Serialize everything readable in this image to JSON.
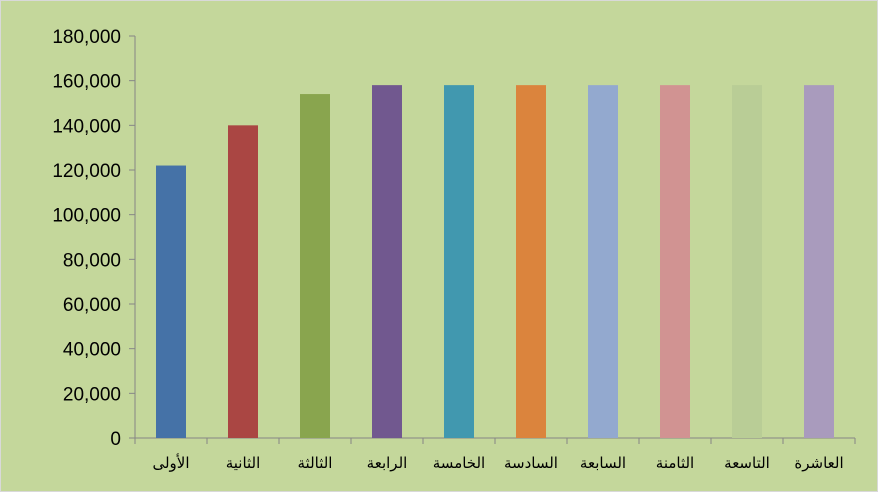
{
  "chart_data": {
    "type": "bar",
    "categories": [
      "الأولى",
      "الثانية",
      "الثالثة",
      "الرابعة",
      "الخامسة",
      "السادسة",
      "السابعة",
      "الثامنة",
      "التاسعة",
      "العاشرة"
    ],
    "values": [
      122000,
      140000,
      154000,
      158000,
      158000,
      158000,
      158000,
      158000,
      158000,
      158000
    ],
    "bar_colors": [
      "#4572a7",
      "#aa4643",
      "#89a54e",
      "#71588f",
      "#4198af",
      "#db843d",
      "#93a9cf",
      "#d19392",
      "#b9cd96",
      "#a99bbd"
    ],
    "ylim": [
      0,
      180000
    ],
    "yticks": [
      "0",
      "20,000",
      "40,000",
      "60,000",
      "80,000",
      "100,000",
      "120,000",
      "140,000",
      "160,000",
      "180,000"
    ],
    "grid": false,
    "legend": "none",
    "background_color": "#c4d79b"
  }
}
